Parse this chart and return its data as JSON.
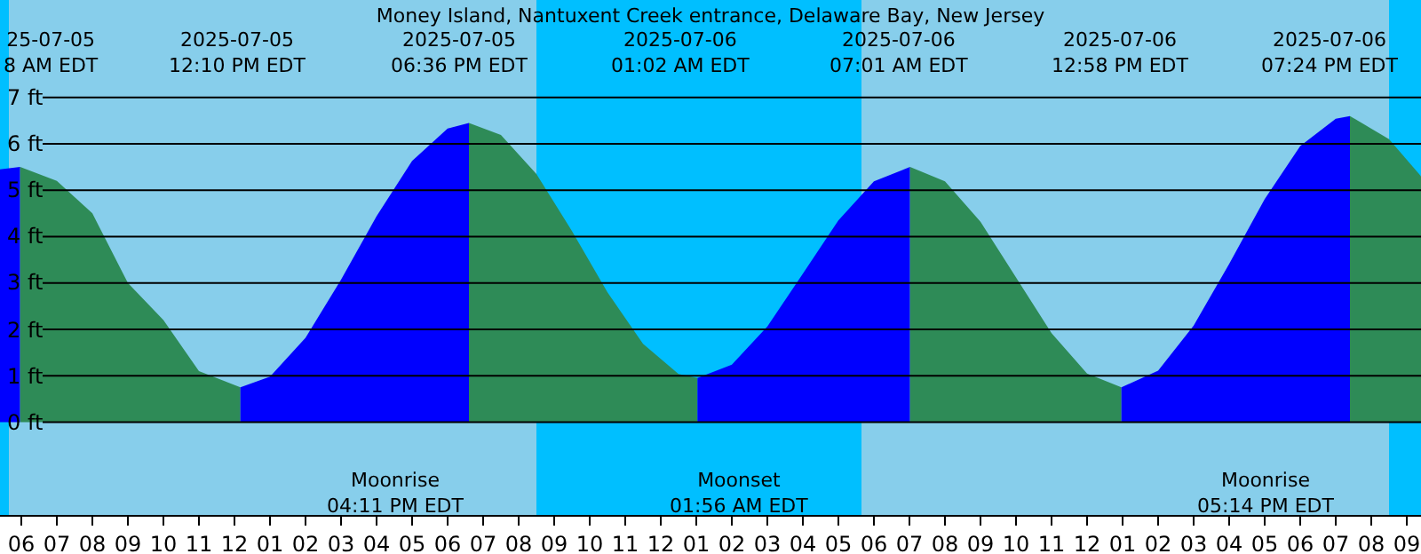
{
  "chart_data": {
    "type": "area",
    "title": "Money Island, Nantuxent Creek entrance, Delaware Bay, New Jersey",
    "xlim": [
      "2025-07-05T05:24",
      "2025-07-06T21:24"
    ],
    "ylim": [
      -2,
      9.1
    ],
    "yticks": [
      {
        "value": 0,
        "label": "0 ft"
      },
      {
        "value": 1,
        "label": "1 ft"
      },
      {
        "value": 2,
        "label": "2 ft"
      },
      {
        "value": 3,
        "label": "3 ft"
      },
      {
        "value": 4,
        "label": "4 ft"
      },
      {
        "value": 5,
        "label": "5 ft"
      },
      {
        "value": 6,
        "label": "6 ft"
      },
      {
        "value": 7,
        "label": "7 ft"
      }
    ],
    "xticks": [
      {
        "value": "2025-07-05T06:00",
        "label": "06"
      },
      {
        "value": "2025-07-05T07:00",
        "label": "07"
      },
      {
        "value": "2025-07-05T08:00",
        "label": "08"
      },
      {
        "value": "2025-07-05T09:00",
        "label": "09"
      },
      {
        "value": "2025-07-05T10:00",
        "label": "10"
      },
      {
        "value": "2025-07-05T11:00",
        "label": "11"
      },
      {
        "value": "2025-07-05T12:00",
        "label": "12"
      },
      {
        "value": "2025-07-05T13:00",
        "label": "01"
      },
      {
        "value": "2025-07-05T14:00",
        "label": "02"
      },
      {
        "value": "2025-07-05T15:00",
        "label": "03"
      },
      {
        "value": "2025-07-05T16:00",
        "label": "04"
      },
      {
        "value": "2025-07-05T17:00",
        "label": "05"
      },
      {
        "value": "2025-07-05T18:00",
        "label": "06"
      },
      {
        "value": "2025-07-05T19:00",
        "label": "07"
      },
      {
        "value": "2025-07-05T20:00",
        "label": "08"
      },
      {
        "value": "2025-07-05T21:00",
        "label": "09"
      },
      {
        "value": "2025-07-05T22:00",
        "label": "10"
      },
      {
        "value": "2025-07-05T23:00",
        "label": "11"
      },
      {
        "value": "2025-07-06T00:00",
        "label": "12"
      },
      {
        "value": "2025-07-06T01:00",
        "label": "01"
      },
      {
        "value": "2025-07-06T02:00",
        "label": "02"
      },
      {
        "value": "2025-07-06T03:00",
        "label": "03"
      },
      {
        "value": "2025-07-06T04:00",
        "label": "04"
      },
      {
        "value": "2025-07-06T05:00",
        "label": "05"
      },
      {
        "value": "2025-07-06T06:00",
        "label": "06"
      },
      {
        "value": "2025-07-06T07:00",
        "label": "07"
      },
      {
        "value": "2025-07-06T08:00",
        "label": "08"
      },
      {
        "value": "2025-07-06T09:00",
        "label": "09"
      },
      {
        "value": "2025-07-06T10:00",
        "label": "10"
      },
      {
        "value": "2025-07-06T11:00",
        "label": "11"
      },
      {
        "value": "2025-07-06T12:00",
        "label": "12"
      },
      {
        "value": "2025-07-06T13:00",
        "label": "01"
      },
      {
        "value": "2025-07-06T14:00",
        "label": "02"
      },
      {
        "value": "2025-07-06T15:00",
        "label": "03"
      },
      {
        "value": "2025-07-06T16:00",
        "label": "04"
      },
      {
        "value": "2025-07-06T17:00",
        "label": "05"
      },
      {
        "value": "2025-07-06T18:00",
        "label": "06"
      },
      {
        "value": "2025-07-06T19:00",
        "label": "07"
      },
      {
        "value": "2025-07-06T20:00",
        "label": "08"
      },
      {
        "value": "2025-07-06T21:00",
        "label": "09"
      }
    ],
    "grid": "y",
    "series": [
      {
        "color": "#0000ff",
        "x": [
          "2025-07-05T05:24",
          "2025-07-05T05:58"
        ],
        "values": [
          5.45,
          5.5
        ]
      },
      {
        "color": "#2e8b57",
        "x": [
          "2025-07-05T05:58",
          "2025-07-05T07:00",
          "2025-07-05T08:00",
          "2025-07-05T09:00",
          "2025-07-05T10:00",
          "2025-07-05T11:00",
          "2025-07-05T12:10"
        ],
        "values": [
          5.5,
          5.2,
          4.5,
          3.0,
          2.2,
          1.1,
          0.75
        ]
      },
      {
        "color": "#0000ff",
        "x": [
          "2025-07-05T12:10",
          "2025-07-05T13:00",
          "2025-07-05T14:00",
          "2025-07-05T15:00",
          "2025-07-05T16:00",
          "2025-07-05T17:00",
          "2025-07-05T18:00",
          "2025-07-05T18:36"
        ],
        "values": [
          0.75,
          0.98,
          1.82,
          3.07,
          4.44,
          5.63,
          6.33,
          6.45
        ]
      },
      {
        "color": "#2e8b57",
        "x": [
          "2025-07-05T18:36",
          "2025-07-05T19:30",
          "2025-07-05T20:30",
          "2025-07-05T21:30",
          "2025-07-05T22:30",
          "2025-07-05T23:30",
          "2025-07-06T00:30",
          "2025-07-06T01:02"
        ],
        "values": [
          6.45,
          6.19,
          5.35,
          4.12,
          2.8,
          1.69,
          1.04,
          0.95
        ]
      },
      {
        "color": "#0000ff",
        "x": [
          "2025-07-06T01:02",
          "2025-07-06T02:00",
          "2025-07-06T03:00",
          "2025-07-06T04:00",
          "2025-07-06T05:00",
          "2025-07-06T06:00",
          "2025-07-06T07:01"
        ],
        "values": [
          0.95,
          1.24,
          2.06,
          3.2,
          4.35,
          5.19,
          5.5
        ]
      },
      {
        "color": "#2e8b57",
        "x": [
          "2025-07-06T07:01",
          "2025-07-06T08:00",
          "2025-07-06T09:00",
          "2025-07-06T10:00",
          "2025-07-06T11:00",
          "2025-07-06T12:00",
          "2025-07-06T12:58"
        ],
        "values": [
          5.5,
          5.19,
          4.32,
          3.12,
          1.92,
          1.05,
          0.75
        ]
      },
      {
        "color": "#0000ff",
        "x": [
          "2025-07-06T12:58",
          "2025-07-06T14:00",
          "2025-07-06T15:00",
          "2025-07-06T16:00",
          "2025-07-06T17:00",
          "2025-07-06T18:00",
          "2025-07-06T19:00",
          "2025-07-06T19:24"
        ],
        "values": [
          0.75,
          1.11,
          2.08,
          3.41,
          4.81,
          5.95,
          6.54,
          6.6
        ]
      },
      {
        "color": "#2e8b57",
        "x": [
          "2025-07-06T19:24",
          "2025-07-06T20:30",
          "2025-07-06T21:24"
        ],
        "values": [
          6.6,
          6.1,
          5.3
        ]
      }
    ],
    "bands": [
      {
        "axis": "x",
        "from": "2025-07-05T05:24",
        "to": "2025-07-05T05:39",
        "color": "#00bfff"
      },
      {
        "axis": "x",
        "from": "2025-07-05T05:39",
        "to": "2025-07-05T20:30",
        "color": "#87ceeb"
      },
      {
        "axis": "x",
        "from": "2025-07-05T20:30",
        "to": "2025-07-06T05:39",
        "color": "#00bfff"
      },
      {
        "axis": "x",
        "from": "2025-07-06T05:39",
        "to": "2025-07-06T20:30",
        "color": "#87ceeb"
      },
      {
        "axis": "x",
        "from": "2025-07-06T20:30",
        "to": "2025-07-06T21:24",
        "color": "#00bfff"
      }
    ],
    "annotations": [
      "25-07-05\n8 AM EDT",
      "2025-07-05\n12:10 PM EDT",
      "2025-07-05\n06:36 PM EDT",
      "2025-07-06\n01:02 AM EDT",
      "2025-07-06\n07:01 AM EDT",
      "2025-07-06\n12:58 PM EDT",
      "2025-07-06\n07:24 PM EDT",
      "Moonrise\n04:11 PM EDT",
      "Moonset\n01:56 AM EDT",
      "Moonrise\n05:14 PM EDT"
    ]
  }
}
